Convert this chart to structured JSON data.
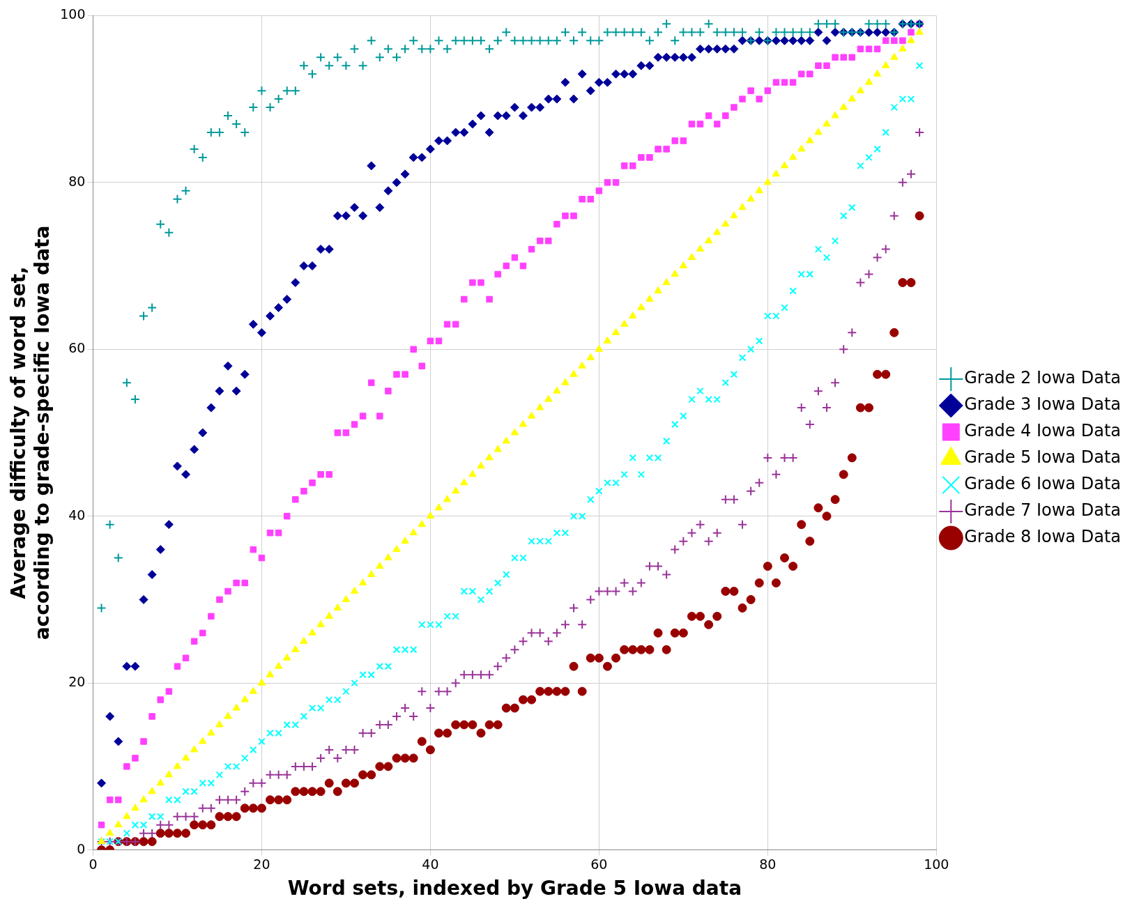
{
  "chart_data": {
    "type": "scatter",
    "xlabel": "Word sets, indexed by Grade 5 Iowa data",
    "ylabel": "Average difficulty of word set,\naccording to grade-specific Iowa data",
    "x": [
      1,
      2,
      3,
      4,
      5,
      6,
      7,
      8,
      9,
      10,
      11,
      12,
      13,
      14,
      15,
      16,
      17,
      18,
      19,
      20,
      21,
      22,
      23,
      24,
      25,
      26,
      27,
      28,
      29,
      30,
      31,
      32,
      33,
      34,
      35,
      36,
      37,
      38,
      39,
      40,
      41,
      42,
      43,
      44,
      45,
      46,
      47,
      48,
      49,
      50,
      51,
      52,
      53,
      54,
      55,
      56,
      57,
      58,
      59,
      60,
      61,
      62,
      63,
      64,
      65,
      66,
      67,
      68,
      69,
      70,
      71,
      72,
      73,
      74,
      75,
      76,
      77,
      78,
      79,
      80,
      81,
      82,
      83,
      84,
      85,
      86,
      87,
      88,
      89,
      90,
      91,
      92,
      93,
      94,
      95,
      96,
      97,
      98
    ],
    "xlim": [
      0,
      100
    ],
    "xticks": [
      0,
      20,
      40,
      60,
      80,
      100
    ],
    "ylim": [
      0,
      100
    ],
    "yticks": [
      0,
      20,
      40,
      60,
      80,
      100
    ],
    "grid": true,
    "legend": "right",
    "series": [
      {
        "name": "Grade 2 Iowa Data",
        "color": "#009999",
        "marker": "cross",
        "values": [
          29,
          39,
          35,
          56,
          54,
          64,
          65,
          75,
          74,
          78,
          79,
          84,
          83,
          86,
          86,
          88,
          87,
          86,
          89,
          91,
          89,
          90,
          91,
          91,
          94,
          93,
          95,
          94,
          95,
          94,
          96,
          94,
          97,
          95,
          96,
          95,
          96,
          97,
          96,
          96,
          97,
          96,
          97,
          97,
          97,
          97,
          96,
          97,
          98,
          97,
          97,
          97,
          97,
          97,
          97,
          98,
          97,
          98,
          97,
          97,
          98,
          98,
          98,
          98,
          98,
          97,
          98,
          99,
          97,
          98,
          98,
          98,
          99,
          98,
          98,
          98,
          98,
          97,
          98,
          97,
          98,
          98,
          98,
          98,
          98,
          99,
          99,
          99,
          98,
          98,
          98,
          99,
          99,
          99,
          98,
          99,
          99,
          99
        ]
      },
      {
        "name": "Grade 3 Iowa Data",
        "color": "#000099",
        "marker": "diamond",
        "values": [
          8,
          16,
          13,
          22,
          22,
          30,
          33,
          36,
          39,
          46,
          45,
          48,
          50,
          53,
          55,
          58,
          55,
          57,
          63,
          62,
          64,
          65,
          66,
          68,
          70,
          70,
          72,
          72,
          76,
          76,
          77,
          76,
          82,
          77,
          79,
          80,
          81,
          83,
          83,
          84,
          85,
          85,
          86,
          86,
          87,
          88,
          86,
          88,
          88,
          89,
          88,
          89,
          89,
          90,
          90,
          92,
          90,
          93,
          91,
          92,
          92,
          93,
          93,
          93,
          94,
          94,
          95,
          95,
          95,
          95,
          95,
          96,
          96,
          96,
          96,
          96,
          97,
          97,
          97,
          97,
          97,
          97,
          97,
          97,
          97,
          98,
          97,
          98,
          98,
          98,
          98,
          98,
          98,
          98,
          98,
          99,
          99,
          99
        ]
      },
      {
        "name": "Grade 4 Iowa Data",
        "color": "#ff40ff",
        "marker": "square",
        "values": [
          3,
          6,
          6,
          10,
          11,
          13,
          16,
          18,
          19,
          22,
          23,
          25,
          26,
          28,
          30,
          31,
          32,
          32,
          36,
          35,
          38,
          38,
          40,
          42,
          43,
          44,
          45,
          45,
          50,
          50,
          51,
          52,
          56,
          52,
          55,
          57,
          57,
          60,
          58,
          61,
          61,
          63,
          63,
          66,
          68,
          68,
          66,
          69,
          70,
          71,
          70,
          72,
          73,
          73,
          75,
          76,
          76,
          78,
          78,
          79,
          80,
          80,
          82,
          82,
          83,
          83,
          84,
          84,
          85,
          85,
          87,
          87,
          88,
          87,
          88,
          89,
          90,
          91,
          90,
          91,
          92,
          92,
          92,
          93,
          93,
          94,
          94,
          95,
          95,
          95,
          96,
          96,
          96,
          97,
          97,
          97,
          98,
          99
        ]
      },
      {
        "name": "Grade 5 Iowa Data",
        "color": "#ffff00",
        "marker": "triangle",
        "values": [
          1,
          2,
          3,
          4,
          5,
          6,
          7,
          8,
          9,
          10,
          11,
          12,
          13,
          14,
          15,
          16,
          17,
          18,
          19,
          20,
          21,
          22,
          23,
          24,
          25,
          26,
          27,
          28,
          29,
          30,
          31,
          32,
          33,
          34,
          35,
          36,
          37,
          38,
          39,
          40,
          41,
          42,
          43,
          44,
          45,
          46,
          47,
          48,
          49,
          50,
          51,
          52,
          53,
          54,
          55,
          56,
          57,
          58,
          59,
          60,
          61,
          62,
          63,
          64,
          65,
          66,
          67,
          68,
          69,
          70,
          71,
          72,
          73,
          74,
          75,
          76,
          77,
          78,
          79,
          80,
          81,
          82,
          83,
          84,
          85,
          86,
          87,
          88,
          89,
          90,
          91,
          92,
          93,
          94,
          95,
          96,
          97,
          98
        ]
      },
      {
        "name": "Grade 6 Iowa Data",
        "color": "#00ffff",
        "marker": "x",
        "values": [
          1,
          1,
          1,
          2,
          3,
          3,
          4,
          4,
          6,
          6,
          7,
          7,
          8,
          8,
          9,
          10,
          10,
          11,
          12,
          13,
          14,
          14,
          15,
          15,
          16,
          17,
          17,
          18,
          18,
          19,
          20,
          21,
          21,
          22,
          22,
          24,
          24,
          24,
          27,
          27,
          27,
          28,
          28,
          31,
          31,
          30,
          31,
          32,
          33,
          35,
          35,
          37,
          37,
          37,
          38,
          38,
          40,
          40,
          42,
          43,
          44,
          44,
          45,
          47,
          45,
          47,
          47,
          49,
          51,
          52,
          54,
          55,
          54,
          54,
          56,
          57,
          59,
          60,
          61,
          64,
          64,
          65,
          67,
          69,
          69,
          72,
          71,
          73,
          76,
          77,
          82,
          83,
          84,
          86,
          89,
          90,
          90,
          94
        ]
      },
      {
        "name": "Grade 7 Iowa Data",
        "color": "#993399",
        "marker": "cross",
        "values": [
          1,
          1,
          1,
          1,
          1,
          2,
          2,
          3,
          3,
          4,
          4,
          4,
          5,
          5,
          6,
          6,
          6,
          7,
          8,
          8,
          9,
          9,
          9,
          10,
          10,
          10,
          11,
          12,
          11,
          12,
          12,
          14,
          14,
          15,
          15,
          16,
          17,
          16,
          19,
          17,
          19,
          19,
          20,
          21,
          21,
          21,
          21,
          22,
          23,
          24,
          25,
          26,
          26,
          25,
          26,
          27,
          29,
          27,
          30,
          31,
          31,
          31,
          32,
          31,
          32,
          34,
          34,
          33,
          36,
          37,
          38,
          39,
          37,
          38,
          42,
          42,
          39,
          43,
          44,
          47,
          45,
          47,
          47,
          53,
          51,
          55,
          53,
          56,
          60,
          62,
          68,
          69,
          71,
          72,
          76,
          80,
          81,
          86
        ]
      },
      {
        "name": "Grade 8 Iowa Data",
        "color": "#990000",
        "marker": "circle",
        "values": [
          0,
          0,
          1,
          1,
          1,
          1,
          1,
          2,
          2,
          2,
          2,
          3,
          3,
          3,
          4,
          4,
          4,
          5,
          5,
          5,
          6,
          6,
          6,
          7,
          7,
          7,
          7,
          8,
          7,
          8,
          8,
          9,
          9,
          10,
          10,
          11,
          11,
          11,
          13,
          12,
          14,
          14,
          15,
          15,
          15,
          14,
          15,
          15,
          17,
          17,
          18,
          18,
          19,
          19,
          19,
          19,
          22,
          19,
          23,
          23,
          22,
          23,
          24,
          24,
          24,
          24,
          26,
          24,
          26,
          26,
          28,
          28,
          27,
          28,
          31,
          31,
          29,
          30,
          32,
          34,
          32,
          35,
          34,
          39,
          37,
          41,
          40,
          42,
          45,
          47,
          53,
          53,
          57,
          57,
          62,
          68,
          68,
          76
        ]
      }
    ]
  }
}
